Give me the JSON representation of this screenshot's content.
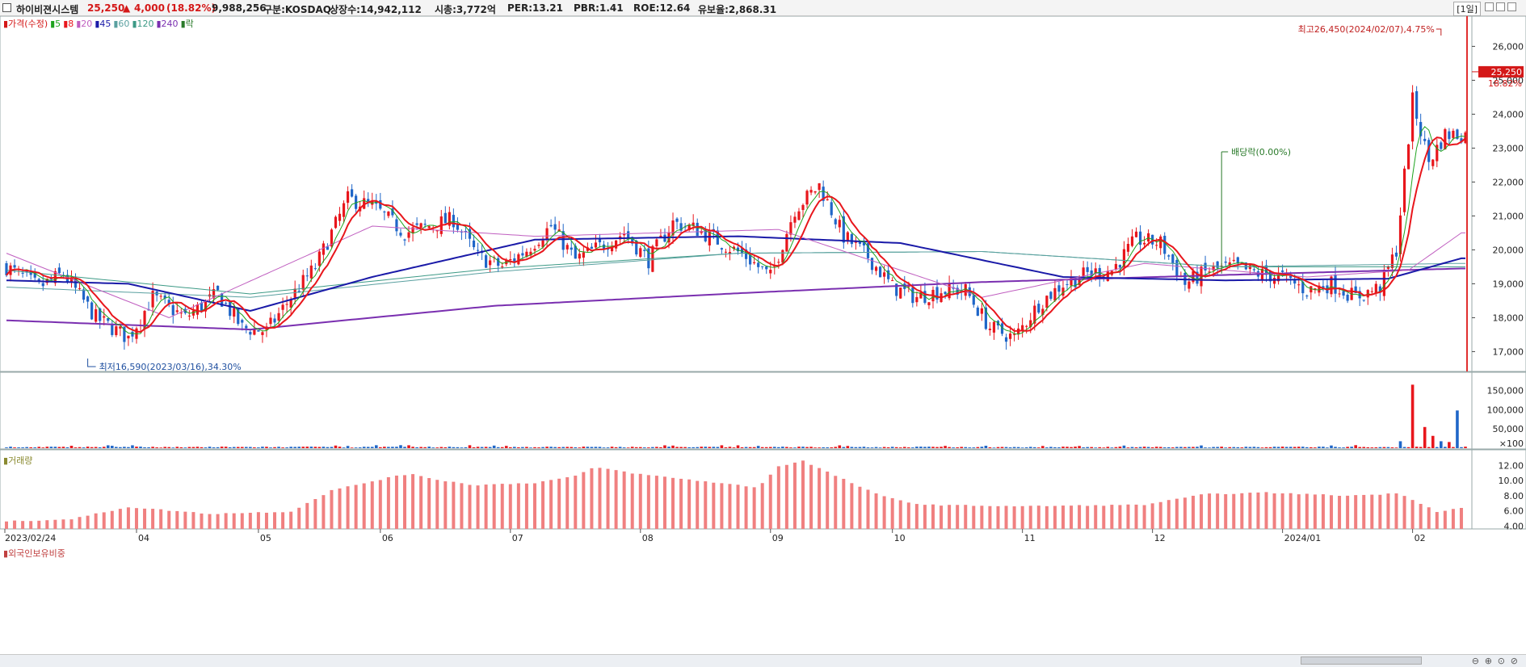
{
  "header": {
    "stock_name": "하이비젼시스템",
    "price": "25,250",
    "change_arrow": "▲",
    "change": "4,000",
    "change_pct": "(18.82%)",
    "volume": "9,988,256",
    "market": "구분:KOSDAQ",
    "listed_shares": "상장수:14,942,112",
    "market_cap": "시총:3,772억",
    "per": "PER:13.21",
    "pbr": "PBR:1.41",
    "roe": "ROE:12.64",
    "float_ratio": "유보율:2,868.31",
    "period_button": "[1일]"
  },
  "legend": {
    "items": [
      {
        "label": "가격(수정)",
        "color": "#d41818"
      },
      {
        "label": "5",
        "color": "#1fa31f"
      },
      {
        "label": "8",
        "color": "#e8161c"
      },
      {
        "label": "20",
        "color": "#c05fc0"
      },
      {
        "label": "45",
        "color": "#1a1aa8"
      },
      {
        "label": "60",
        "color": "#5aa0a0"
      },
      {
        "label": "120",
        "color": "#3d9a86"
      },
      {
        "label": "240",
        "color": "#7a2fb0"
      },
      {
        "label": "락",
        "color": "#2a7a2a"
      }
    ],
    "volume_label": "거래량",
    "foreign_label": "외국인보유비중"
  },
  "annotations": {
    "high": "최고26,450(2024/02/07),4.75%",
    "low": "최저16,590(2023/03/16),34.30%",
    "dividend": "배당락(0.00%)",
    "current_price_tag": "25,250",
    "current_pct_tag": "18.82%"
  },
  "colors": {
    "up": "#e8161c",
    "down": "#1f66c8",
    "foreign_bar": "#f08080"
  },
  "chart_data": {
    "type": "candlestick",
    "price_axis": {
      "min": 16590,
      "max": 26450,
      "ticks": [
        "17,000",
        "18,000",
        "19,000",
        "20,000",
        "21,000",
        "22,000",
        "23,000",
        "24,000",
        "25,000",
        "26,000"
      ]
    },
    "volume_axis": {
      "ticks": [
        "×100",
        "50,000",
        "100,000",
        "150,000"
      ]
    },
    "foreign_axis": {
      "ticks": [
        "4.00",
        "6.00",
        "8.00",
        "10.00",
        "12.00"
      ]
    },
    "x_labels": [
      "2023/02/24",
      "04",
      "05",
      "06",
      "07",
      "08",
      "09",
      "10",
      "11",
      "12",
      "2024/01",
      "02"
    ],
    "price_anchors": [
      [
        0,
        19500
      ],
      [
        8,
        18900
      ],
      [
        14,
        19300
      ],
      [
        22,
        18000
      ],
      [
        30,
        17400
      ],
      [
        36,
        18600
      ],
      [
        44,
        18000
      ],
      [
        52,
        18700
      ],
      [
        58,
        17700
      ],
      [
        64,
        17600
      ],
      [
        70,
        18600
      ],
      [
        76,
        19500
      ],
      [
        84,
        21500
      ],
      [
        90,
        21300
      ],
      [
        98,
        20500
      ],
      [
        104,
        20700
      ],
      [
        110,
        20900
      ],
      [
        116,
        19800
      ],
      [
        122,
        19500
      ],
      [
        128,
        20000
      ],
      [
        134,
        20700
      ],
      [
        140,
        19700
      ],
      [
        146,
        20100
      ],
      [
        152,
        20500
      ],
      [
        158,
        19700
      ],
      [
        164,
        20800
      ],
      [
        170,
        20600
      ],
      [
        176,
        20200
      ],
      [
        182,
        19800
      ],
      [
        188,
        19200
      ],
      [
        194,
        21200
      ],
      [
        200,
        21900
      ],
      [
        206,
        20400
      ],
      [
        212,
        19800
      ],
      [
        218,
        18900
      ],
      [
        224,
        18600
      ],
      [
        230,
        18800
      ],
      [
        236,
        18800
      ],
      [
        242,
        17700
      ],
      [
        248,
        17400
      ],
      [
        254,
        18400
      ],
      [
        260,
        19000
      ],
      [
        266,
        19300
      ],
      [
        272,
        19400
      ],
      [
        278,
        20300
      ],
      [
        284,
        20200
      ],
      [
        290,
        19000
      ],
      [
        296,
        19400
      ],
      [
        302,
        19500
      ],
      [
        308,
        19300
      ],
      [
        314,
        19200
      ],
      [
        320,
        18800
      ],
      [
        326,
        19000
      ],
      [
        332,
        18600
      ],
      [
        338,
        18900
      ],
      [
        342,
        20000
      ],
      [
        346,
        24400
      ],
      [
        350,
        22600
      ],
      [
        354,
        23400
      ]
    ],
    "ma240_anchors": [
      [
        0,
        17920
      ],
      [
        60,
        17650
      ],
      [
        120,
        18350
      ],
      [
        180,
        18720
      ],
      [
        240,
        19050
      ],
      [
        300,
        19260
      ],
      [
        358,
        19450
      ]
    ],
    "ma120_anchors": [
      [
        0,
        19400
      ],
      [
        60,
        18700
      ],
      [
        120,
        19450
      ],
      [
        180,
        19900
      ],
      [
        240,
        19950
      ],
      [
        300,
        19500
      ],
      [
        358,
        19500
      ]
    ],
    "ma60_anchors": [
      [
        0,
        18900
      ],
      [
        60,
        18600
      ],
      [
        120,
        19350
      ],
      [
        180,
        19900
      ],
      [
        240,
        19950
      ],
      [
        300,
        19500
      ],
      [
        358,
        19600
      ]
    ],
    "ma45_anchors": [
      [
        0,
        19100
      ],
      [
        30,
        19000
      ],
      [
        60,
        18200
      ],
      [
        90,
        19200
      ],
      [
        130,
        20300
      ],
      [
        180,
        20400
      ],
      [
        220,
        20200
      ],
      [
        260,
        19200
      ],
      [
        300,
        19100
      ],
      [
        340,
        19150
      ],
      [
        358,
        19750
      ]
    ],
    "ma20_anchors": [
      [
        0,
        19900
      ],
      [
        40,
        18000
      ],
      [
        90,
        20700
      ],
      [
        130,
        20400
      ],
      [
        190,
        20600
      ],
      [
        240,
        18600
      ],
      [
        280,
        19600
      ],
      [
        320,
        19200
      ],
      [
        345,
        19400
      ],
      [
        358,
        20500
      ]
    ],
    "foreign_ratio_anchors": [
      [
        0,
        4.6
      ],
      [
        16,
        4.9
      ],
      [
        30,
        6.5
      ],
      [
        50,
        5.6
      ],
      [
        70,
        5.9
      ],
      [
        80,
        8.7
      ],
      [
        95,
        10.5
      ],
      [
        100,
        10.9
      ],
      [
        105,
        10.2
      ],
      [
        115,
        9.4
      ],
      [
        130,
        9.7
      ],
      [
        140,
        10.6
      ],
      [
        145,
        11.8
      ],
      [
        155,
        10.9
      ],
      [
        170,
        10.0
      ],
      [
        185,
        9.1
      ],
      [
        190,
        11.9
      ],
      [
        196,
        12.6
      ],
      [
        205,
        10.4
      ],
      [
        215,
        8.0
      ],
      [
        225,
        6.8
      ],
      [
        250,
        6.6
      ],
      [
        280,
        6.8
      ],
      [
        295,
        8.2
      ],
      [
        310,
        8.4
      ],
      [
        330,
        8.0
      ],
      [
        343,
        8.3
      ],
      [
        352,
        5.9
      ],
      [
        358,
        6.4
      ]
    ],
    "volume_spikes": [
      [
        343,
        18000
      ],
      [
        346,
        165000
      ],
      [
        349,
        55000
      ],
      [
        351,
        32000
      ],
      [
        353,
        18000
      ],
      [
        355,
        16000
      ],
      [
        357,
        98000
      ]
    ]
  }
}
